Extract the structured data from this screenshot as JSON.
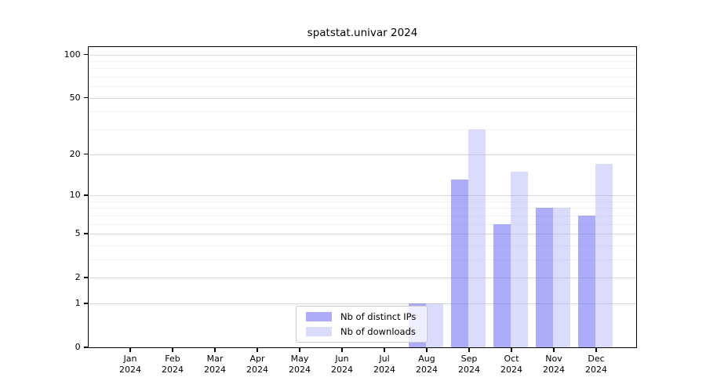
{
  "title": "spatstat.univar 2024",
  "chart_data": {
    "type": "bar",
    "title": "spatstat.univar 2024",
    "x": {
      "months": [
        "Jan",
        "Feb",
        "Mar",
        "Apr",
        "May",
        "Jun",
        "Jul",
        "Aug",
        "Sep",
        "Oct",
        "Nov",
        "Dec"
      ],
      "year": "2024"
    },
    "series": [
      {
        "name": "Nb of distinct IPs",
        "color": "rgba(95,95,242,0.52)",
        "values": [
          0,
          0,
          0,
          0,
          0,
          0,
          0,
          1,
          13,
          6,
          8,
          7
        ]
      },
      {
        "name": "Nb of downloads",
        "color": "rgba(175,175,248,0.45)",
        "values": [
          0,
          0,
          0,
          0,
          0,
          0,
          0,
          1,
          30,
          15,
          8,
          17
        ]
      }
    ],
    "y_axis": {
      "scale": "log1p",
      "ticks": [
        0,
        1,
        2,
        5,
        10,
        20,
        50,
        100
      ],
      "minor_ticks": [
        3,
        4,
        6,
        7,
        8,
        9,
        30,
        40,
        60,
        70,
        80,
        90
      ],
      "ylim": [
        0,
        100
      ]
    },
    "legend": {
      "position": "bottom-center",
      "entries": [
        "Nb of distinct IPs",
        "Nb of downloads"
      ]
    },
    "grid": true,
    "colors": {
      "grid_major": "#d7d7d7",
      "grid_minor": "#f1f1f1",
      "axis": "#000000",
      "bar_distinct_ips": "#ababf5",
      "bar_downloads": "#dcdcfa"
    }
  }
}
